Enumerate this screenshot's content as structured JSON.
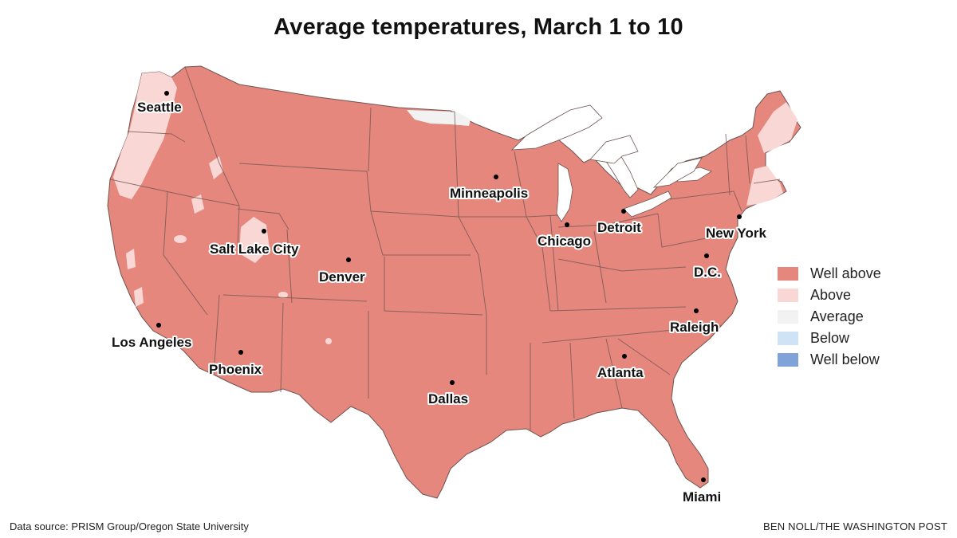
{
  "title": "Average temperatures, March 1 to 10",
  "colors": {
    "well_above": "#e5877d",
    "above": "#f9d7d5",
    "average": "#f2f2f2",
    "below": "#cfe3f6",
    "well_below": "#7fa3d8",
    "water": "#ffffff",
    "border": "#6e5452"
  },
  "legend": [
    {
      "label": "Well above",
      "color": "#e5877d"
    },
    {
      "label": "Above",
      "color": "#f9d7d5"
    },
    {
      "label": "Average",
      "color": "#f2f2f2"
    },
    {
      "label": "Below",
      "color": "#cfe3f6"
    },
    {
      "label": "Well below",
      "color": "#7fa3d8"
    }
  ],
  "cities": {
    "seattle": "Seattle",
    "minneapolis": "Minneapolis",
    "detroit": "Detroit",
    "chicago": "Chicago",
    "new_york": "New York",
    "salt_lake_city": "Salt Lake City",
    "denver": "Denver",
    "dc": "D.C.",
    "los_angeles": "Los Angeles",
    "phoenix": "Phoenix",
    "raleigh": "Raleigh",
    "atlanta": "Atlanta",
    "dallas": "Dallas",
    "miami": "Miami"
  },
  "footer": {
    "source": "Data source: PRISM Group/Oregon State University",
    "credit": "BEN NOLL/THE WASHINGTON POST"
  }
}
